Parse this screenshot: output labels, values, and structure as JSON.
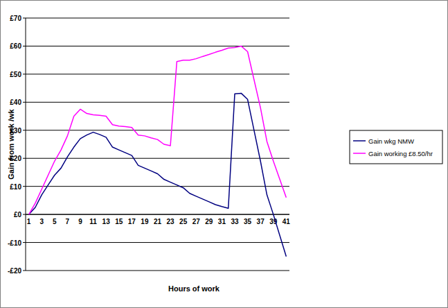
{
  "chart_data": {
    "type": "line",
    "x_label": "Hours of work",
    "y_label": "Gain from work /wk",
    "categories": [
      "1",
      null,
      "3",
      null,
      "5",
      null,
      "7",
      null,
      "9",
      null,
      "11",
      null,
      "13",
      null,
      "15",
      null,
      "17",
      null,
      "19",
      null,
      "21",
      null,
      "23",
      null,
      "25",
      null,
      "27",
      null,
      "29",
      null,
      "31",
      null,
      "33",
      null,
      "35",
      null,
      "37",
      null,
      "39",
      null,
      "41"
    ],
    "series": [
      {
        "name": "Gain wkg NMW",
        "color": "#000080",
        "values": [
          0,
          2.5,
          7,
          10.5,
          14,
          16.5,
          20.5,
          24,
          27,
          28.3,
          29.3,
          28.5,
          27.5,
          24,
          23,
          22,
          21,
          17.5,
          16.5,
          15.5,
          14.5,
          12.5,
          11.5,
          10.5,
          9.5,
          7.5,
          6.5,
          5.5,
          4.5,
          3.5,
          2.8,
          2.2,
          43,
          43.2,
          41,
          30,
          19,
          7,
          0,
          -7.5,
          -15
        ]
      },
      {
        "name": "Gain working £8.50/hr",
        "color": "#ff00ff",
        "values": [
          0,
          4,
          9,
          14,
          19,
          23,
          28,
          35,
          37.5,
          36,
          35.5,
          35.3,
          35,
          32,
          31.5,
          31.3,
          31,
          28.3,
          28,
          27.3,
          26.7,
          25,
          24.5,
          54.5,
          55,
          55,
          55.5,
          56.3,
          57,
          57.8,
          58.5,
          59.3,
          59.5,
          60,
          58,
          48,
          38,
          26,
          19,
          12.5,
          6
        ]
      }
    ],
    "ylim": [
      -20,
      70
    ],
    "yticks": [
      {
        "value": -20,
        "label": "-£20"
      },
      {
        "value": -10,
        "label": "-£10"
      },
      {
        "value": 0,
        "label": "£0"
      },
      {
        "value": 10,
        "label": "£10"
      },
      {
        "value": 20,
        "label": "£20"
      },
      {
        "value": 30,
        "label": "£30"
      },
      {
        "value": 40,
        "label": "£40"
      },
      {
        "value": 50,
        "label": "£50"
      },
      {
        "value": 60,
        "label": "£60"
      },
      {
        "value": 70,
        "label": "£70"
      }
    ],
    "grid": true,
    "legend": "right"
  }
}
